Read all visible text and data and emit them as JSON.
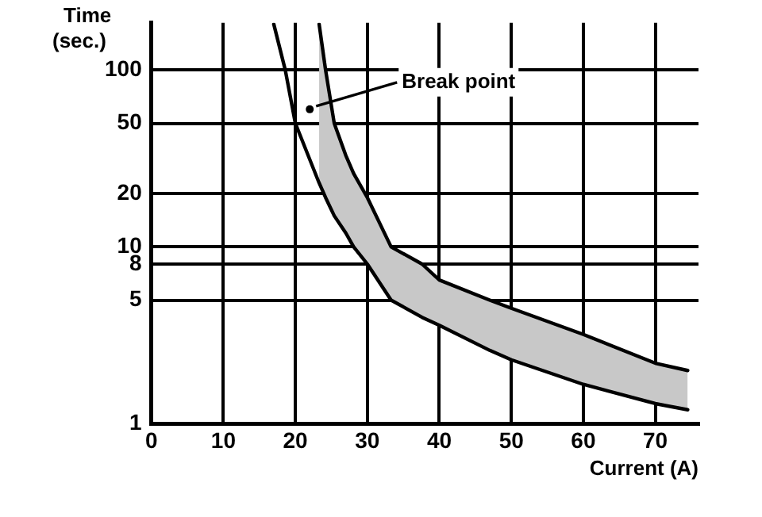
{
  "chart_data": {
    "type": "line",
    "xlabel": "Current (A)",
    "ylabel": "Time (sec.)",
    "xlim": [
      0,
      76
    ],
    "xticks": [
      0,
      10,
      20,
      30,
      40,
      50,
      60,
      70
    ],
    "ylim": [
      1,
      185
    ],
    "yticks": [
      1,
      5,
      8,
      10,
      20,
      50,
      100
    ],
    "log": "y",
    "grid": true,
    "legend": false,
    "marker": "none",
    "line_style": "solid",
    "x": [
      17,
      18.6,
      20,
      23.3,
      24.2,
      25.4,
      27,
      28.1,
      30,
      33.3,
      37.6,
      40,
      47,
      50,
      60,
      70,
      74.5
    ],
    "series": [
      {
        "type": "line",
        "color": "#000000",
        "values": [
          182,
          100,
          50,
          23,
          19,
          15,
          12,
          10,
          8,
          5,
          4,
          3.6,
          2.6,
          2.3,
          1.67,
          1.3,
          1.2
        ]
      },
      {
        "type": "area",
        "color": "#c8c8c8",
        "values": [
          null,
          null,
          null,
          182,
          100,
          50,
          33,
          26,
          19,
          10,
          8,
          6.5,
          5,
          4.5,
          3.2,
          2.2,
          2.0
        ]
      }
    ],
    "annotations": [
      {
        "text": "Break point",
        "x": 22,
        "y": 60
      }
    ]
  }
}
